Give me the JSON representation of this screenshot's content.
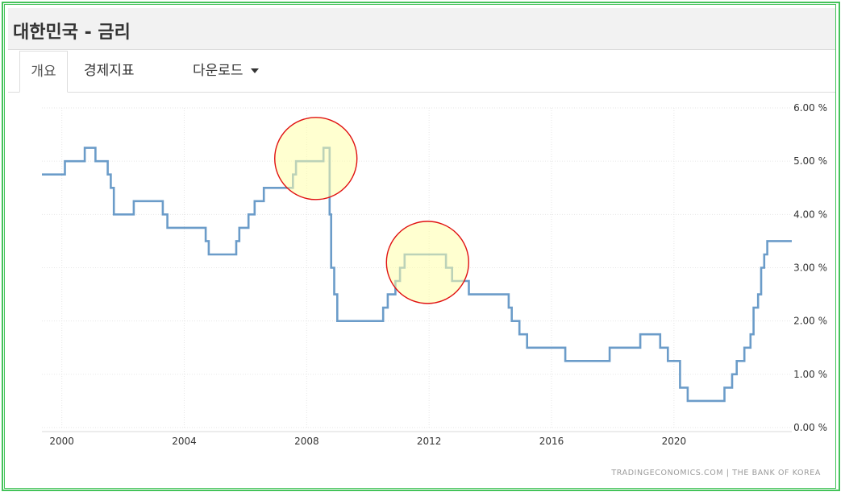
{
  "header": {
    "title": "대한민국 - 금리"
  },
  "tabs": [
    {
      "label": "개요",
      "active": true
    },
    {
      "label": "경제지표",
      "active": false
    },
    {
      "label": "다운로드",
      "active": false,
      "dropdown": true
    }
  ],
  "chart_data": {
    "type": "line",
    "title": "",
    "xlabel": "",
    "ylabel": "",
    "xlim": [
      1999.35,
      2023.85
    ],
    "ylim": [
      0,
      6
    ],
    "x_ticks": [
      "2000",
      "2004",
      "2008",
      "2012",
      "2016",
      "2020"
    ],
    "x_tick_values": [
      2000,
      2004,
      2008,
      2012,
      2016,
      2020
    ],
    "y_ticks": [
      "0.00 %",
      "1.00 %",
      "2.00 %",
      "3.00 %",
      "4.00 %",
      "5.00 %",
      "6.00 %"
    ],
    "y_tick_values": [
      0,
      1,
      2,
      3,
      4,
      5,
      6
    ],
    "grid": "dotted",
    "line_color": "#6b9cc9",
    "series": [
      {
        "step": true,
        "x": [
          1999.35,
          2000.1,
          2000.75,
          2001.1,
          2001.5,
          2001.6,
          2001.7,
          2002.35,
          2003.3,
          2003.45,
          2004.7,
          2004.8,
          2005.7,
          2005.8,
          2006.1,
          2006.3,
          2006.6,
          2006.75,
          2007.55,
          2007.65,
          2008.55,
          2008.75,
          2008.8,
          2008.9,
          2009.0,
          2009.15,
          2010.5,
          2010.65,
          2010.9,
          2011.05,
          2011.2,
          2011.45,
          2012.55,
          2012.75,
          2013.3,
          2014.6,
          2014.7,
          2014.95,
          2015.2,
          2015.45,
          2016.45,
          2017.9,
          2018.9,
          2019.55,
          2019.8,
          2020.2,
          2020.45,
          2021.65,
          2021.9,
          2022.05,
          2022.3,
          2022.5,
          2022.6,
          2022.75,
          2022.85,
          2022.95,
          2023.05,
          2023.2,
          2023.85
        ],
        "y": [
          4.75,
          5.0,
          5.25,
          5.0,
          4.75,
          4.5,
          4.0,
          4.25,
          4.0,
          3.75,
          3.5,
          3.25,
          3.5,
          3.75,
          4.0,
          4.25,
          4.5,
          4.5,
          4.75,
          5.0,
          5.25,
          4.0,
          3.0,
          2.5,
          2.0,
          2.0,
          2.25,
          2.5,
          2.75,
          3.0,
          3.25,
          3.25,
          3.0,
          2.75,
          2.5,
          2.25,
          2.0,
          1.75,
          1.5,
          1.5,
          1.25,
          1.5,
          1.75,
          1.5,
          1.25,
          0.75,
          0.5,
          0.75,
          1.0,
          1.25,
          1.5,
          1.75,
          2.25,
          2.5,
          3.0,
          3.25,
          3.5,
          3.5,
          3.5
        ]
      }
    ],
    "highlights": [
      {
        "x": 2008.3,
        "y": 5.05,
        "label": ""
      },
      {
        "x": 2011.95,
        "y": 3.1,
        "label": ""
      }
    ],
    "source": "TRADINGECONOMICS.COM  |  THE BANK OF KOREA"
  }
}
